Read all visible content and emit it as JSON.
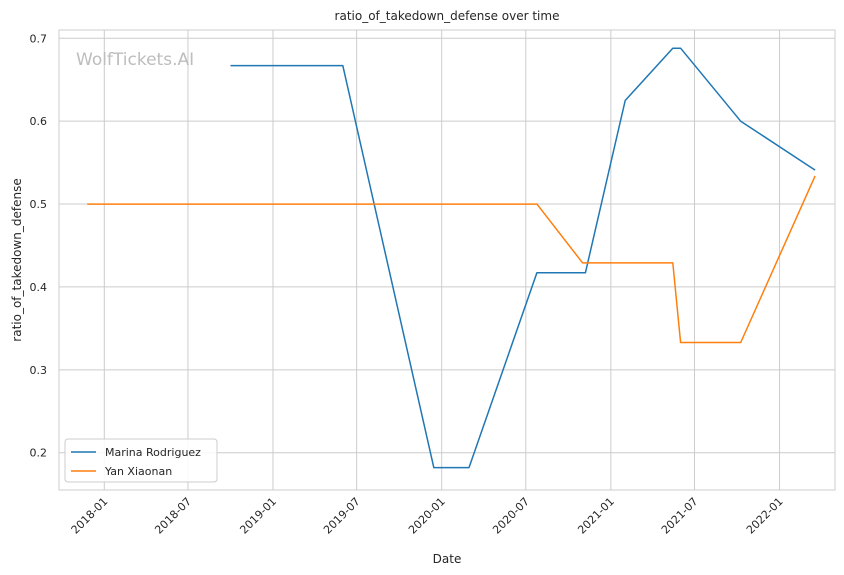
{
  "chart_data": {
    "type": "line",
    "title": "ratio_of_takedown_defense over time",
    "xlabel": "Date",
    "ylabel": "ratio_of_takedown_defense",
    "watermark": "WolfTickets.AI",
    "x_ticks": [
      "2018-01",
      "2018-07",
      "2019-01",
      "2019-07",
      "2020-01",
      "2020-07",
      "2021-01",
      "2021-07",
      "2022-01"
    ],
    "y_ticks": [
      "0.2",
      "0.3",
      "0.4",
      "0.5",
      "0.6",
      "0.7"
    ],
    "xlim": [
      "2017-09-25",
      "2022-05-01"
    ],
    "ylim": [
      0.155,
      0.71
    ],
    "grid": true,
    "legend_position": "bottom-left",
    "series": [
      {
        "name": "Marina Rodriguez",
        "color": "#1f77b4",
        "points": [
          {
            "x": "2018-10-01",
            "y": 0.667
          },
          {
            "x": "2019-06-01",
            "y": 0.667
          },
          {
            "x": "2019-12-15",
            "y": 0.182
          },
          {
            "x": "2020-02-29",
            "y": 0.182
          },
          {
            "x": "2020-07-25",
            "y": 0.417
          },
          {
            "x": "2020-11-07",
            "y": 0.417
          },
          {
            "x": "2021-02-01",
            "y": 0.625
          },
          {
            "x": "2021-05-15",
            "y": 0.688
          },
          {
            "x": "2021-06-01",
            "y": 0.688
          },
          {
            "x": "2021-10-09",
            "y": 0.6
          },
          {
            "x": "2022-03-19",
            "y": 0.541
          }
        ]
      },
      {
        "name": "Yan Xiaonan",
        "color": "#ff7f0e",
        "points": [
          {
            "x": "2017-11-25",
            "y": 0.5
          },
          {
            "x": "2020-07-25",
            "y": 0.5
          },
          {
            "x": "2020-11-01",
            "y": 0.429
          },
          {
            "x": "2021-05-15",
            "y": 0.429
          },
          {
            "x": "2021-06-01",
            "y": 0.333
          },
          {
            "x": "2021-10-09",
            "y": 0.333
          },
          {
            "x": "2022-03-19",
            "y": 0.534
          }
        ]
      }
    ]
  }
}
